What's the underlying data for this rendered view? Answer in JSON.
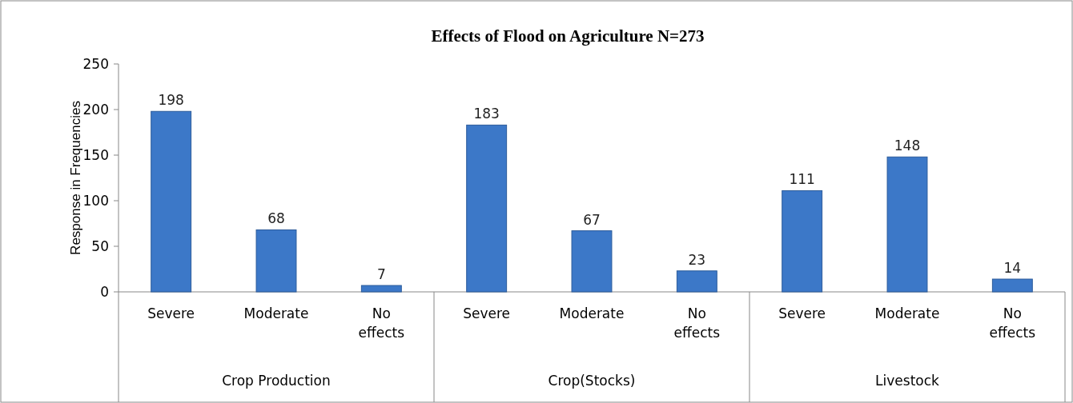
{
  "chart_data": {
    "type": "bar",
    "title": "Effects of Flood on Agriculture N=273",
    "ylabel": "Response in Frequencies",
    "categories": [
      "Severe",
      "Moderate",
      "No effects",
      "Severe",
      "Moderate",
      "No effects",
      "Severe",
      "Moderate",
      "No effects"
    ],
    "values": [
      198,
      68,
      7,
      183,
      67,
      23,
      111,
      148,
      14
    ],
    "color": "#3c78c8",
    "ylim": [
      0,
      250
    ],
    "yticks": [
      0,
      50,
      100,
      150,
      200,
      250
    ],
    "grid": false,
    "data_labels": true,
    "annotations": [
      "Crop Production",
      "Crop(Stocks)",
      "Livestock"
    ]
  }
}
